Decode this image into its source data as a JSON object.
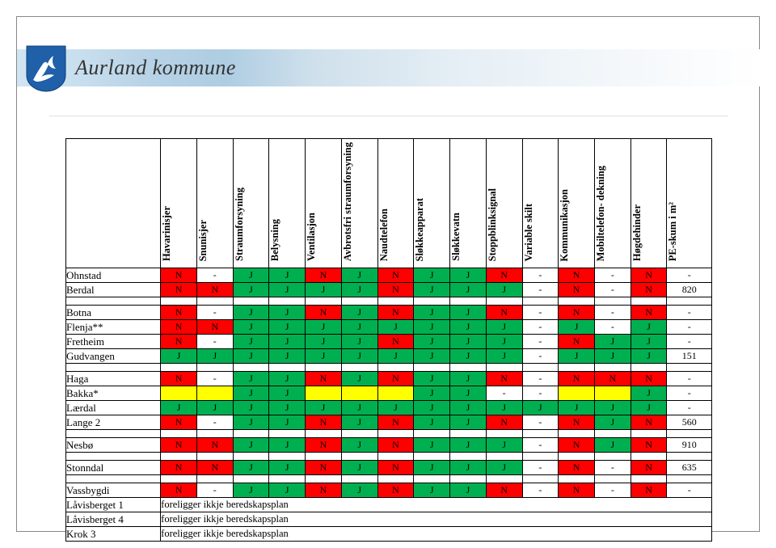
{
  "brand": "Aurland kommune",
  "colors": {
    "red": "#ff0000",
    "green": "#00b050",
    "yellow": "#ffff00",
    "white": "#ffffff",
    "border": "#000000",
    "banner_start": "#d0e4f1",
    "banner_end": "#ffffff",
    "shield_blue": "#1f60a8",
    "shield_white": "#ffffff"
  },
  "columns": [
    "Havarinisjer",
    "Snunisjer",
    "Straumforsyning",
    "Belysning",
    "Ventilasjon",
    "Avbrotsfri straumforsyning",
    "Naudtelefon",
    "Sløkkeapparat",
    "Sløkkevatn",
    "Stoppblinksignal",
    "Variable skilt",
    "Kommunikasjon",
    "Mobiltelefon- dekning",
    "Høgdehinder",
    "PE-skum i m²"
  ],
  "note_text": "foreligger ikkje beredskapsplan",
  "groups": [
    [
      {
        "name": "Ohnstad",
        "cells": [
          {
            "v": "N",
            "c": "N"
          },
          {
            "v": "-",
            "c": "W"
          },
          {
            "v": "J",
            "c": "J"
          },
          {
            "v": "J",
            "c": "J"
          },
          {
            "v": "N",
            "c": "N"
          },
          {
            "v": "J",
            "c": "J"
          },
          {
            "v": "N",
            "c": "N"
          },
          {
            "v": "J",
            "c": "J"
          },
          {
            "v": "J",
            "c": "J"
          },
          {
            "v": "N",
            "c": "N"
          },
          {
            "v": "-",
            "c": "W"
          },
          {
            "v": "N",
            "c": "N"
          },
          {
            "v": "-",
            "c": "W"
          },
          {
            "v": "N",
            "c": "N"
          },
          {
            "v": "-",
            "c": "W"
          }
        ]
      },
      {
        "name": "Berdal",
        "cells": [
          {
            "v": "N",
            "c": "N"
          },
          {
            "v": "N",
            "c": "N"
          },
          {
            "v": "J",
            "c": "J"
          },
          {
            "v": "J",
            "c": "J"
          },
          {
            "v": "J",
            "c": "J"
          },
          {
            "v": "J",
            "c": "J"
          },
          {
            "v": "N",
            "c": "N"
          },
          {
            "v": "J",
            "c": "J"
          },
          {
            "v": "J",
            "c": "J"
          },
          {
            "v": "J",
            "c": "J"
          },
          {
            "v": "-",
            "c": "W"
          },
          {
            "v": "N",
            "c": "N"
          },
          {
            "v": "-",
            "c": "W"
          },
          {
            "v": "N",
            "c": "N"
          },
          {
            "v": "820",
            "c": "W"
          }
        ]
      }
    ],
    [
      {
        "name": "Botna",
        "cells": [
          {
            "v": "N",
            "c": "N"
          },
          {
            "v": "-",
            "c": "W"
          },
          {
            "v": "J",
            "c": "J"
          },
          {
            "v": "J",
            "c": "J"
          },
          {
            "v": "N",
            "c": "N"
          },
          {
            "v": "J",
            "c": "J"
          },
          {
            "v": "N",
            "c": "N"
          },
          {
            "v": "J",
            "c": "J"
          },
          {
            "v": "J",
            "c": "J"
          },
          {
            "v": "N",
            "c": "N"
          },
          {
            "v": "-",
            "c": "W"
          },
          {
            "v": "N",
            "c": "N"
          },
          {
            "v": "-",
            "c": "W"
          },
          {
            "v": "N",
            "c": "N"
          },
          {
            "v": "-",
            "c": "W"
          }
        ]
      },
      {
        "name": "Flenja**",
        "cells": [
          {
            "v": "N",
            "c": "N"
          },
          {
            "v": "N",
            "c": "N"
          },
          {
            "v": "J",
            "c": "J"
          },
          {
            "v": "J",
            "c": "J"
          },
          {
            "v": "J",
            "c": "J"
          },
          {
            "v": "J",
            "c": "J"
          },
          {
            "v": "J",
            "c": "J"
          },
          {
            "v": "J",
            "c": "J"
          },
          {
            "v": "J",
            "c": "J"
          },
          {
            "v": "J",
            "c": "J"
          },
          {
            "v": "-",
            "c": "W"
          },
          {
            "v": "J",
            "c": "J"
          },
          {
            "v": "-",
            "c": "W"
          },
          {
            "v": "J",
            "c": "J"
          },
          {
            "v": "-",
            "c": "W"
          }
        ]
      },
      {
        "name": "Fretheim",
        "cells": [
          {
            "v": "N",
            "c": "N"
          },
          {
            "v": "-",
            "c": "W"
          },
          {
            "v": "J",
            "c": "J"
          },
          {
            "v": "J",
            "c": "J"
          },
          {
            "v": "J",
            "c": "J"
          },
          {
            "v": "J",
            "c": "J"
          },
          {
            "v": "N",
            "c": "N"
          },
          {
            "v": "J",
            "c": "J"
          },
          {
            "v": "J",
            "c": "J"
          },
          {
            "v": "J",
            "c": "J"
          },
          {
            "v": "-",
            "c": "W"
          },
          {
            "v": "N",
            "c": "N"
          },
          {
            "v": "J",
            "c": "J"
          },
          {
            "v": "J",
            "c": "J"
          },
          {
            "v": "-",
            "c": "W"
          }
        ]
      },
      {
        "name": "Gudvangen",
        "cells": [
          {
            "v": "J",
            "c": "J"
          },
          {
            "v": "J",
            "c": "J"
          },
          {
            "v": "J",
            "c": "J"
          },
          {
            "v": "J",
            "c": "J"
          },
          {
            "v": "J",
            "c": "J"
          },
          {
            "v": "J",
            "c": "J"
          },
          {
            "v": "J",
            "c": "J"
          },
          {
            "v": "J",
            "c": "J"
          },
          {
            "v": "J",
            "c": "J"
          },
          {
            "v": "J",
            "c": "J"
          },
          {
            "v": "-",
            "c": "W"
          },
          {
            "v": "J",
            "c": "J"
          },
          {
            "v": "J",
            "c": "J"
          },
          {
            "v": "J",
            "c": "J"
          },
          {
            "v": "151",
            "c": "W"
          }
        ]
      }
    ],
    [
      {
        "name": "Haga",
        "cells": [
          {
            "v": "N",
            "c": "N"
          },
          {
            "v": "-",
            "c": "W"
          },
          {
            "v": "J",
            "c": "J"
          },
          {
            "v": "J",
            "c": "J"
          },
          {
            "v": "N",
            "c": "N"
          },
          {
            "v": "J",
            "c": "J"
          },
          {
            "v": "N",
            "c": "N"
          },
          {
            "v": "J",
            "c": "J"
          },
          {
            "v": "J",
            "c": "J"
          },
          {
            "v": "N",
            "c": "N"
          },
          {
            "v": "-",
            "c": "W"
          },
          {
            "v": "N",
            "c": "N"
          },
          {
            "v": "N",
            "c": "N"
          },
          {
            "v": "N",
            "c": "N"
          },
          {
            "v": "-",
            "c": "W"
          }
        ]
      },
      {
        "name": "Bakka*",
        "cells": [
          {
            "v": "",
            "c": "Y"
          },
          {
            "v": "",
            "c": "Y"
          },
          {
            "v": "J",
            "c": "J"
          },
          {
            "v": "J",
            "c": "J"
          },
          {
            "v": "",
            "c": "Y"
          },
          {
            "v": "",
            "c": "Y"
          },
          {
            "v": "",
            "c": "Y"
          },
          {
            "v": "J",
            "c": "J"
          },
          {
            "v": "J",
            "c": "J"
          },
          {
            "v": "-",
            "c": "W"
          },
          {
            "v": "-",
            "c": "W"
          },
          {
            "v": "",
            "c": "Y"
          },
          {
            "v": "",
            "c": "Y"
          },
          {
            "v": "J",
            "c": "J"
          },
          {
            "v": "-",
            "c": "W"
          }
        ]
      },
      {
        "name": "Lærdal",
        "cells": [
          {
            "v": "J",
            "c": "J"
          },
          {
            "v": "J",
            "c": "J"
          },
          {
            "v": "J",
            "c": "J"
          },
          {
            "v": "J",
            "c": "J"
          },
          {
            "v": "J",
            "c": "J"
          },
          {
            "v": "J",
            "c": "J"
          },
          {
            "v": "J",
            "c": "J"
          },
          {
            "v": "J",
            "c": "J"
          },
          {
            "v": "J",
            "c": "J"
          },
          {
            "v": "J",
            "c": "J"
          },
          {
            "v": "J",
            "c": "J"
          },
          {
            "v": "J",
            "c": "J"
          },
          {
            "v": "J",
            "c": "J"
          },
          {
            "v": "J",
            "c": "J"
          },
          {
            "v": "-",
            "c": "W"
          }
        ]
      },
      {
        "name": "Lange 2",
        "cells": [
          {
            "v": "N",
            "c": "N"
          },
          {
            "v": "-",
            "c": "W"
          },
          {
            "v": "J",
            "c": "J"
          },
          {
            "v": "J",
            "c": "J"
          },
          {
            "v": "N",
            "c": "N"
          },
          {
            "v": "J",
            "c": "J"
          },
          {
            "v": "N",
            "c": "N"
          },
          {
            "v": "J",
            "c": "J"
          },
          {
            "v": "J",
            "c": "J"
          },
          {
            "v": "N",
            "c": "N"
          },
          {
            "v": "-",
            "c": "W"
          },
          {
            "v": "N",
            "c": "N"
          },
          {
            "v": "J",
            "c": "J"
          },
          {
            "v": "N",
            "c": "N"
          },
          {
            "v": "560",
            "c": "W"
          }
        ]
      }
    ],
    [
      {
        "name": "Nesbø",
        "cells": [
          {
            "v": "N",
            "c": "N"
          },
          {
            "v": "N",
            "c": "N"
          },
          {
            "v": "J",
            "c": "J"
          },
          {
            "v": "J",
            "c": "J"
          },
          {
            "v": "N",
            "c": "N"
          },
          {
            "v": "J",
            "c": "J"
          },
          {
            "v": "N",
            "c": "N"
          },
          {
            "v": "J",
            "c": "J"
          },
          {
            "v": "J",
            "c": "J"
          },
          {
            "v": "J",
            "c": "J"
          },
          {
            "v": "-",
            "c": "W"
          },
          {
            "v": "N",
            "c": "N"
          },
          {
            "v": "J",
            "c": "J"
          },
          {
            "v": "N",
            "c": "N"
          },
          {
            "v": "910",
            "c": "W"
          }
        ]
      }
    ],
    [
      {
        "name": "Stonndal",
        "cells": [
          {
            "v": "N",
            "c": "N"
          },
          {
            "v": "N",
            "c": "N"
          },
          {
            "v": "J",
            "c": "J"
          },
          {
            "v": "J",
            "c": "J"
          },
          {
            "v": "N",
            "c": "N"
          },
          {
            "v": "J",
            "c": "J"
          },
          {
            "v": "N",
            "c": "N"
          },
          {
            "v": "J",
            "c": "J"
          },
          {
            "v": "J",
            "c": "J"
          },
          {
            "v": "J",
            "c": "J"
          },
          {
            "v": "-",
            "c": "W"
          },
          {
            "v": "N",
            "c": "N"
          },
          {
            "v": "-",
            "c": "W"
          },
          {
            "v": "N",
            "c": "N"
          },
          {
            "v": "635",
            "c": "W"
          }
        ]
      }
    ],
    [
      {
        "name": "Vassbygdi",
        "cells": [
          {
            "v": "N",
            "c": "N"
          },
          {
            "v": "-",
            "c": "W"
          },
          {
            "v": "J",
            "c": "J"
          },
          {
            "v": "J",
            "c": "J"
          },
          {
            "v": "N",
            "c": "N"
          },
          {
            "v": "J",
            "c": "J"
          },
          {
            "v": "N",
            "c": "N"
          },
          {
            "v": "J",
            "c": "J"
          },
          {
            "v": "J",
            "c": "J"
          },
          {
            "v": "N",
            "c": "N"
          },
          {
            "v": "-",
            "c": "W"
          },
          {
            "v": "N",
            "c": "N"
          },
          {
            "v": "-",
            "c": "W"
          },
          {
            "v": "N",
            "c": "N"
          },
          {
            "v": "-",
            "c": "W"
          }
        ]
      },
      {
        "name": "Låvisberget 1",
        "note": true
      },
      {
        "name": "Låvisberget 4",
        "note": true
      },
      {
        "name": "Krok 3",
        "note": true
      }
    ]
  ]
}
